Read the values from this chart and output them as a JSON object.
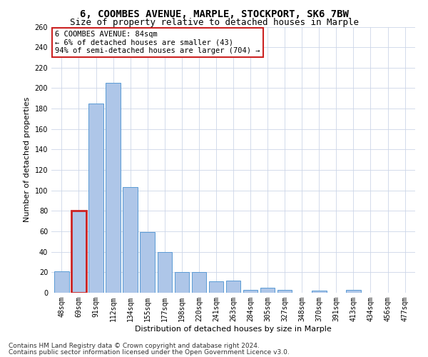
{
  "title1": "6, COOMBES AVENUE, MARPLE, STOCKPORT, SK6 7BW",
  "title2": "Size of property relative to detached houses in Marple",
  "xlabel": "Distribution of detached houses by size in Marple",
  "ylabel": "Number of detached properties",
  "categories": [
    "48sqm",
    "69sqm",
    "91sqm",
    "112sqm",
    "134sqm",
    "155sqm",
    "177sqm",
    "198sqm",
    "220sqm",
    "241sqm",
    "263sqm",
    "284sqm",
    "305sqm",
    "327sqm",
    "348sqm",
    "370sqm",
    "391sqm",
    "413sqm",
    "434sqm",
    "456sqm",
    "477sqm"
  ],
  "values": [
    21,
    80,
    185,
    205,
    103,
    59,
    40,
    20,
    20,
    11,
    12,
    3,
    5,
    3,
    0,
    2,
    0,
    3,
    0,
    0,
    0
  ],
  "bar_color": "#aec6e8",
  "bar_edge_color": "#5b9bd5",
  "highlight_bar_index": 1,
  "highlight_bar_edge_color": "#cc2222",
  "annotation_box_text": "6 COOMBES AVENUE: 84sqm\n← 6% of detached houses are smaller (43)\n94% of semi-detached houses are larger (704) →",
  "ylim": [
    0,
    260
  ],
  "yticks": [
    0,
    20,
    40,
    60,
    80,
    100,
    120,
    140,
    160,
    180,
    200,
    220,
    240,
    260
  ],
  "footer1": "Contains HM Land Registry data © Crown copyright and database right 2024.",
  "footer2": "Contains public sector information licensed under the Open Government Licence v3.0.",
  "bg_color": "#ffffff",
  "grid_color": "#ccd6e8",
  "title1_fontsize": 10,
  "title2_fontsize": 9,
  "axis_label_fontsize": 8,
  "tick_fontsize": 7,
  "annotation_fontsize": 7.5,
  "footer_fontsize": 6.5
}
